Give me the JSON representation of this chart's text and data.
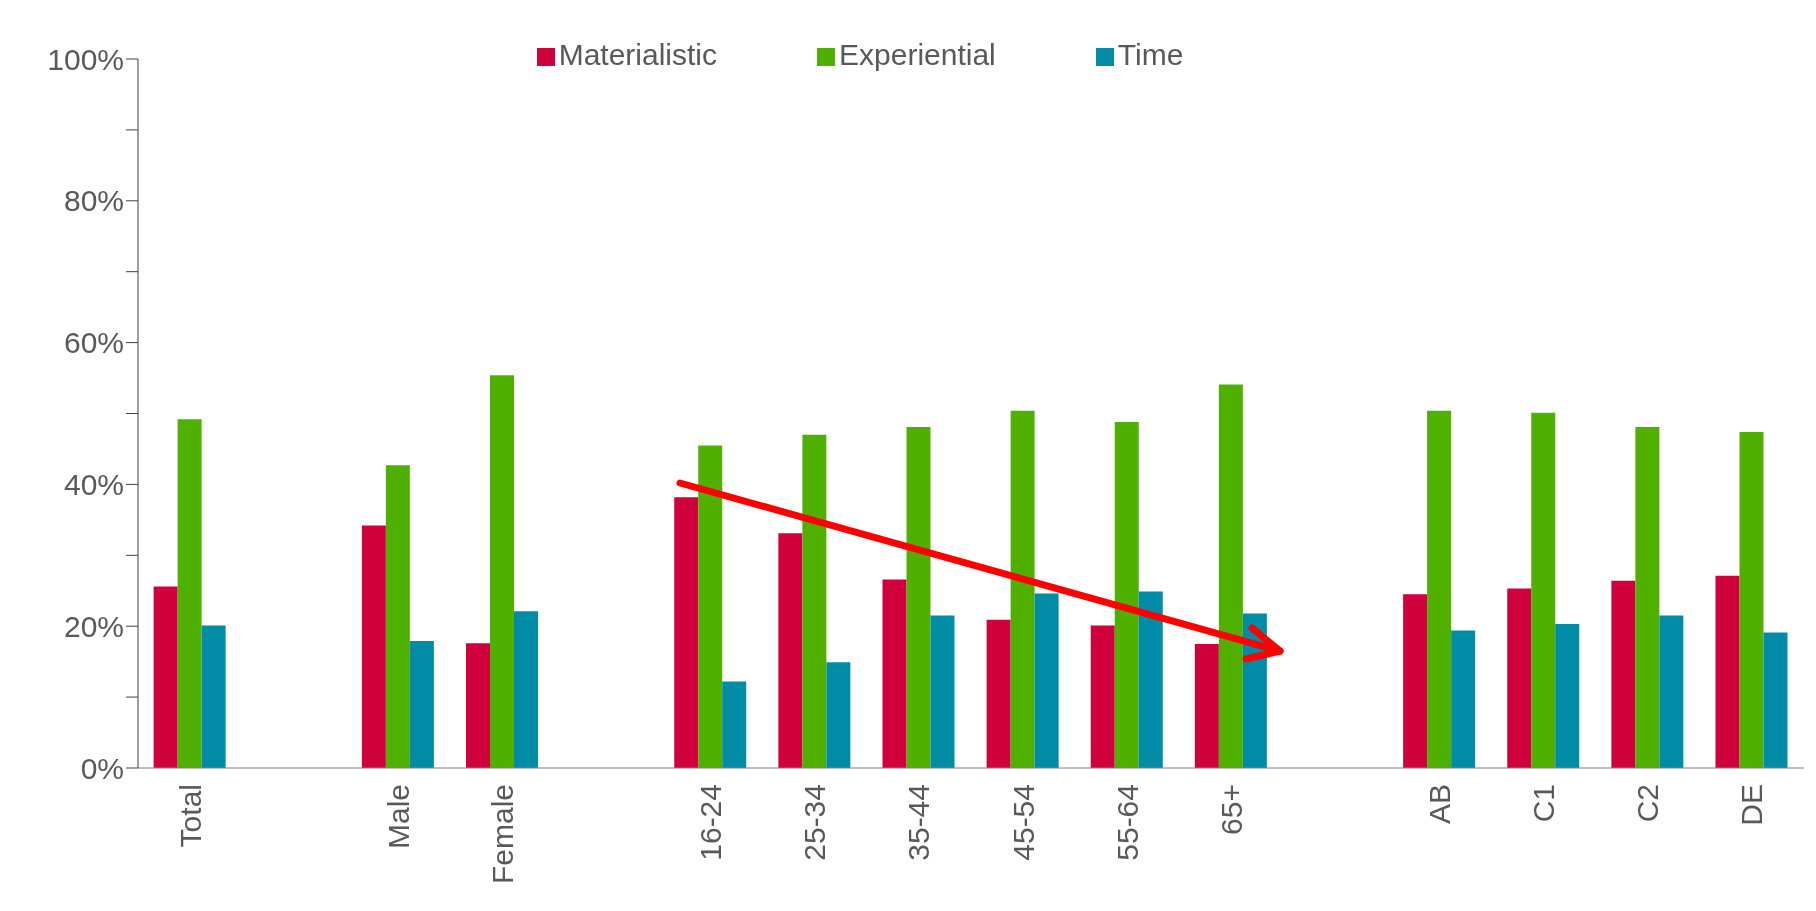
{
  "chart_data": {
    "type": "bar",
    "categories": [
      "Total",
      null,
      "Male",
      "Female",
      null,
      "16-24",
      "25-34",
      "35-44",
      "45-54",
      "55-64",
      "65+",
      null,
      "AB",
      "C1",
      "C2",
      "DE"
    ],
    "series": [
      {
        "name": "Materialistic",
        "color": "#d0003c",
        "values": [
          25.6,
          null,
          34.2,
          17.6,
          null,
          38.2,
          33.1,
          26.6,
          20.9,
          20.1,
          17.5,
          null,
          24.5,
          25.3,
          26.4,
          27.1
        ]
      },
      {
        "name": "Experiential",
        "color": "#4fb000",
        "values": [
          49.2,
          null,
          42.7,
          55.4,
          null,
          45.5,
          47.0,
          48.1,
          50.4,
          48.8,
          54.1,
          null,
          50.4,
          50.1,
          48.1,
          47.4
        ]
      },
      {
        "name": "Time",
        "color": "#008ca6",
        "values": [
          20.1,
          null,
          17.9,
          22.1,
          null,
          12.2,
          14.9,
          21.5,
          24.6,
          24.9,
          21.8,
          null,
          19.4,
          20.3,
          21.5,
          19.1
        ]
      }
    ],
    "ylim": [
      0,
      100
    ],
    "yticks": [
      {
        "value": 0,
        "label": "0%"
      },
      {
        "value": 10,
        "label": null
      },
      {
        "value": 20,
        "label": "20%"
      },
      {
        "value": 30,
        "label": null
      },
      {
        "value": 40,
        "label": "40%"
      },
      {
        "value": 50,
        "label": null
      },
      {
        "value": 60,
        "label": "60%"
      },
      {
        "value": 70,
        "label": null
      },
      {
        "value": 80,
        "label": "80%"
      },
      {
        "value": 90,
        "label": null
      },
      {
        "value": 100,
        "label": "100%"
      }
    ],
    "grid": false,
    "legend": "top"
  }
}
